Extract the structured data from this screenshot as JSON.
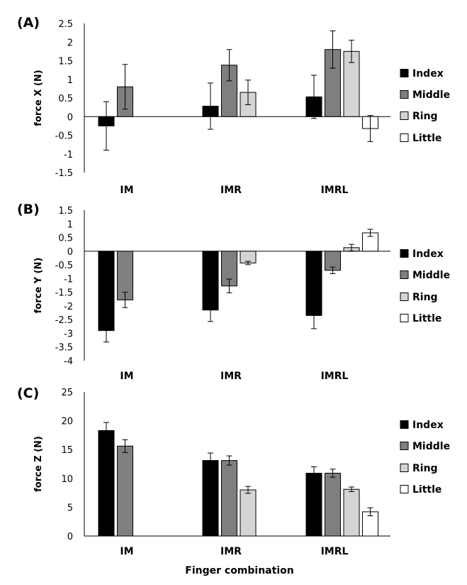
{
  "figure": {
    "x_axis_title": "Finger combination"
  },
  "chart_data": [
    {
      "type": "bar",
      "panel_label": "(A)",
      "ylabel": "force X (N)",
      "categories": [
        "IM",
        "IMR",
        "IMRL"
      ],
      "yticks": [
        "2.5",
        "2",
        "1.5",
        "1",
        "0.5",
        "0",
        "-0.5",
        "-1",
        "-1.5"
      ],
      "ylim": [
        -1.5,
        2.5
      ],
      "grid": false,
      "legend_position": "right",
      "series": [
        {
          "name": "Index",
          "color": "#000000",
          "values": [
            -0.25,
            0.28,
            0.53
          ],
          "errors": [
            0.65,
            0.62,
            0.58
          ]
        },
        {
          "name": "Middle",
          "color": "#7f7f7f",
          "values": [
            0.8,
            1.38,
            1.8
          ],
          "errors": [
            0.6,
            0.42,
            0.5
          ]
        },
        {
          "name": "Ring",
          "color": "#d4d4d4",
          "values": [
            null,
            0.65,
            1.75
          ],
          "errors": [
            null,
            0.33,
            0.3
          ]
        },
        {
          "name": "Little",
          "color": "#ffffff",
          "values": [
            null,
            null,
            -0.32
          ],
          "errors": [
            null,
            null,
            0.35
          ]
        }
      ]
    },
    {
      "type": "bar",
      "panel_label": "(B)",
      "ylabel": "force Y (N)",
      "categories": [
        "IM",
        "IMR",
        "IMRL"
      ],
      "yticks": [
        "1.5",
        "1",
        "0.5",
        "0",
        "-0.5",
        "-1",
        "-1.5",
        "-2",
        "-2.5",
        "-3",
        "-3.5",
        "-4"
      ],
      "ylim": [
        -4,
        1.5
      ],
      "grid": false,
      "legend_position": "right",
      "series": [
        {
          "name": "Index",
          "color": "#000000",
          "values": [
            -2.9,
            -2.15,
            -2.35
          ],
          "errors": [
            0.42,
            0.42,
            0.48
          ]
        },
        {
          "name": "Middle",
          "color": "#7f7f7f",
          "values": [
            -1.78,
            -1.27,
            -0.7
          ],
          "errors": [
            0.28,
            0.25,
            0.12
          ]
        },
        {
          "name": "Ring",
          "color": "#d4d4d4",
          "values": [
            null,
            -0.43,
            0.13
          ],
          "errors": [
            null,
            0.06,
            0.12
          ]
        },
        {
          "name": "Little",
          "color": "#ffffff",
          "values": [
            null,
            null,
            0.67
          ],
          "errors": [
            null,
            null,
            0.13
          ]
        }
      ]
    },
    {
      "type": "bar",
      "panel_label": "(C)",
      "ylabel": "force Z (N)",
      "categories": [
        "IM",
        "IMR",
        "IMRL"
      ],
      "yticks": [
        "25",
        "20",
        "15",
        "10",
        "5",
        "0"
      ],
      "ylim": [
        0,
        25
      ],
      "grid": false,
      "legend_position": "right",
      "series": [
        {
          "name": "Index",
          "color": "#000000",
          "values": [
            18.3,
            13.1,
            10.9
          ],
          "errors": [
            1.4,
            1.3,
            1.1
          ]
        },
        {
          "name": "Middle",
          "color": "#7f7f7f",
          "values": [
            15.6,
            13.1,
            10.9
          ],
          "errors": [
            1.1,
            0.8,
            0.7
          ]
        },
        {
          "name": "Ring",
          "color": "#d4d4d4",
          "values": [
            null,
            8.0,
            8.1
          ],
          "errors": [
            null,
            0.6,
            0.4
          ]
        },
        {
          "name": "Little",
          "color": "#ffffff",
          "values": [
            null,
            null,
            4.2
          ],
          "errors": [
            null,
            null,
            0.7
          ]
        }
      ]
    }
  ]
}
